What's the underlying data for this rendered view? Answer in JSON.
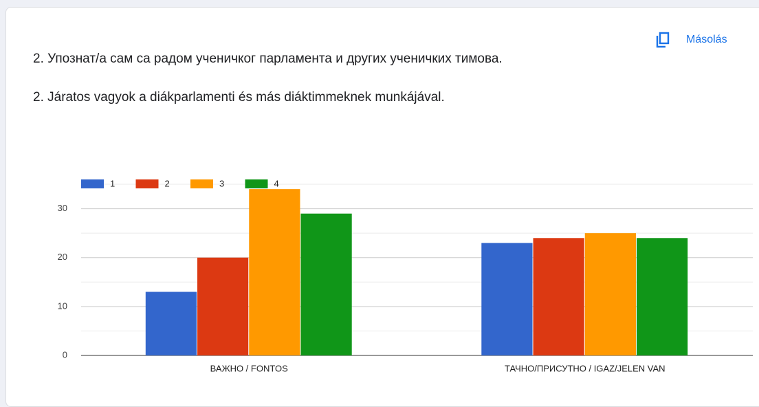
{
  "header": {
    "button": "Másolás",
    "question_sr": "2. Упознат/а сам са радом ученичког парламента и других ученичких тимова.",
    "question_hu": "2. Járatos vagyok a diákparlamenti és más diáktimmeknek munkájával."
  },
  "chart_data": {
    "type": "bar",
    "categories": [
      "ВАЖНО / FONTOS",
      "ТАЧНО/ПРИСУТНО / IGAZ/JELEN VAN"
    ],
    "series": [
      {
        "name": "1",
        "color": "#3366cc",
        "values": [
          13,
          23
        ]
      },
      {
        "name": "2",
        "color": "#dc3912",
        "values": [
          20,
          24
        ]
      },
      {
        "name": "3",
        "color": "#ff9900",
        "values": [
          34,
          25
        ]
      },
      {
        "name": "4",
        "color": "#109618",
        "values": [
          29,
          24
        ]
      }
    ],
    "ylim": [
      0,
      35
    ],
    "yticks": [
      0,
      10,
      20,
      30
    ],
    "minor_yticks": [
      5,
      15,
      25,
      35
    ],
    "grid": true,
    "legend": "top-left"
  }
}
